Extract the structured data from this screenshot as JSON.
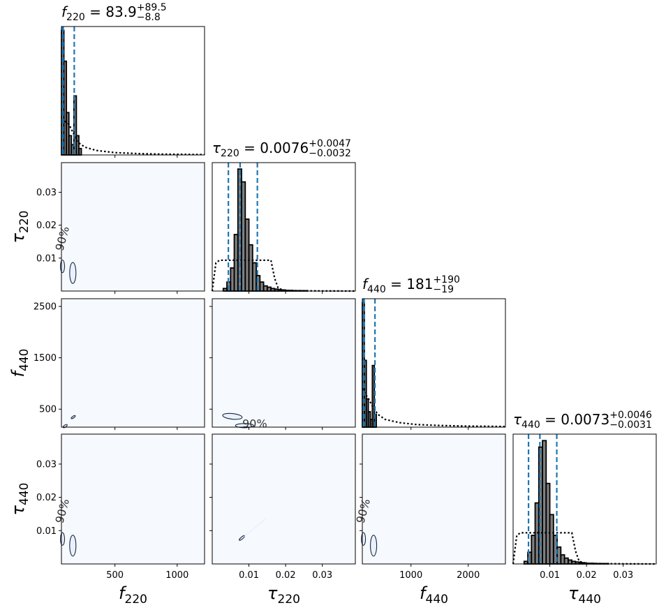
{
  "chart_data": {
    "type": "corner",
    "parameters": [
      {
        "symbol": "f",
        "sub": "220",
        "range": [
          70,
          1220
        ],
        "ticks": [
          500,
          1000
        ],
        "tick_labels": [
          "500",
          "1000"
        ]
      },
      {
        "symbol": "τ",
        "sub": "220",
        "range": [
          0.0,
          0.039
        ],
        "ticks": [
          0.01,
          0.02,
          0.03
        ],
        "tick_labels": [
          "0.01",
          "0.02",
          "0.03"
        ]
      },
      {
        "symbol": "f",
        "sub": "440",
        "range": [
          150,
          2650
        ],
        "ticks": [
          500,
          1500,
          2500
        ],
        "tick_labels": [
          "500",
          "1500",
          "2500"
        ],
        "x_ticks": [
          1000,
          2000
        ],
        "x_tick_labels": [
          "1000",
          "2000"
        ]
      },
      {
        "symbol": "τ",
        "sub": "440",
        "range": [
          0.0,
          0.039
        ],
        "ticks": [
          0.01,
          0.02,
          0.03
        ],
        "tick_labels": [
          "0.01",
          "0.02",
          "0.03"
        ]
      }
    ],
    "titles": [
      {
        "lhs": "f",
        "sub": "220",
        "eq": " = 83.9",
        "up": "+89.5",
        "down": "−8.8"
      },
      {
        "lhs": "τ",
        "sub": "220",
        "eq": " = 0.0076",
        "up": "+0.0047",
        "down": "−0.0032"
      },
      {
        "lhs": "f",
        "sub": "440",
        "eq": " = 181",
        "up": "+190",
        "down": "−19"
      },
      {
        "lhs": "τ",
        "sub": "440",
        "eq": " = 0.0073",
        "up": "+0.0046",
        "down": "−0.0031"
      }
    ],
    "quantiles": [
      [
        75,
        84,
        173
      ],
      [
        0.0044,
        0.0076,
        0.0123
      ],
      [
        162,
        181,
        371
      ],
      [
        0.0042,
        0.0073,
        0.0119
      ]
    ],
    "histograms": [
      {
        "edges": [
          70,
          90,
          110,
          130,
          150,
          170,
          190,
          210,
          230
        ],
        "counts": [
          0.97,
          0.73,
          0.33,
          0.15,
          0.08,
          0.46,
          0.15,
          0.05
        ]
      },
      {
        "edges": [
          0.0,
          0.001,
          0.002,
          0.003,
          0.004,
          0.005,
          0.006,
          0.007,
          0.008,
          0.009,
          0.01,
          0.011,
          0.012,
          0.013,
          0.014,
          0.015,
          0.016,
          0.017,
          0.018,
          0.019,
          0.02,
          0.022,
          0.026,
          0.039
        ],
        "counts": [
          0,
          0,
          0,
          0.02,
          0.07,
          0.18,
          0.44,
          0.95,
          0.85,
          0.56,
          0.36,
          0.22,
          0.12,
          0.07,
          0.04,
          0.03,
          0.02,
          0.015,
          0.01,
          0.008,
          0.005,
          0.003,
          0.0
        ]
      },
      {
        "edges": [
          150,
          185,
          220,
          255,
          290,
          325,
          360,
          395
        ],
        "counts": [
          0.97,
          0.52,
          0.22,
          0.12,
          0.06,
          0.48,
          0.1
        ]
      },
      {
        "edges": [
          0.0,
          0.001,
          0.002,
          0.003,
          0.004,
          0.005,
          0.006,
          0.007,
          0.008,
          0.009,
          0.01,
          0.011,
          0.012,
          0.013,
          0.014,
          0.015,
          0.016,
          0.017,
          0.018,
          0.019,
          0.02,
          0.022,
          0.026,
          0.039
        ],
        "counts": [
          0,
          0,
          0,
          0.02,
          0.09,
          0.22,
          0.47,
          0.9,
          0.95,
          0.62,
          0.38,
          0.22,
          0.13,
          0.07,
          0.045,
          0.03,
          0.02,
          0.015,
          0.01,
          0.008,
          0.005,
          0.003,
          0.0
        ]
      }
    ],
    "priors": [
      {
        "x": [
          70,
          85,
          100,
          130,
          160,
          200,
          260,
          350,
          500,
          700,
          900,
          1100,
          1220
        ],
        "y": [
          0.28,
          0.27,
          0.26,
          0.24,
          0.18,
          0.1,
          0.06,
          0.035,
          0.018,
          0.01,
          0.006,
          0.004,
          0.003
        ]
      },
      {
        "x": [
          0.0,
          0.001,
          0.002,
          0.016,
          0.017,
          0.018,
          0.02,
          0.025,
          0.03,
          0.039
        ],
        "y": [
          0.0,
          0.22,
          0.24,
          0.24,
          0.1,
          0.02,
          0.005,
          0.002,
          0.001,
          0.0
        ]
      },
      {
        "x": [
          150,
          170,
          200,
          260,
          330,
          420,
          550,
          800,
          1100,
          1500,
          2000,
          2650
        ],
        "y": [
          0.3,
          0.29,
          0.26,
          0.22,
          0.16,
          0.1,
          0.06,
          0.035,
          0.02,
          0.013,
          0.008,
          0.005
        ]
      },
      {
        "x": [
          0.0,
          0.001,
          0.002,
          0.016,
          0.017,
          0.018,
          0.02,
          0.025,
          0.03,
          0.039
        ],
        "y": [
          0.0,
          0.22,
          0.24,
          0.24,
          0.1,
          0.02,
          0.005,
          0.002,
          0.001,
          0.0
        ]
      }
    ],
    "contour_label": "90%",
    "colors": {
      "hist_fill": "#808080",
      "hist_edge": "#000000",
      "quantile": "#1f77b4",
      "prior": "#000000",
      "panel_bg": "#f6f9fe",
      "contour_fill": "#eaf1fb"
    }
  }
}
